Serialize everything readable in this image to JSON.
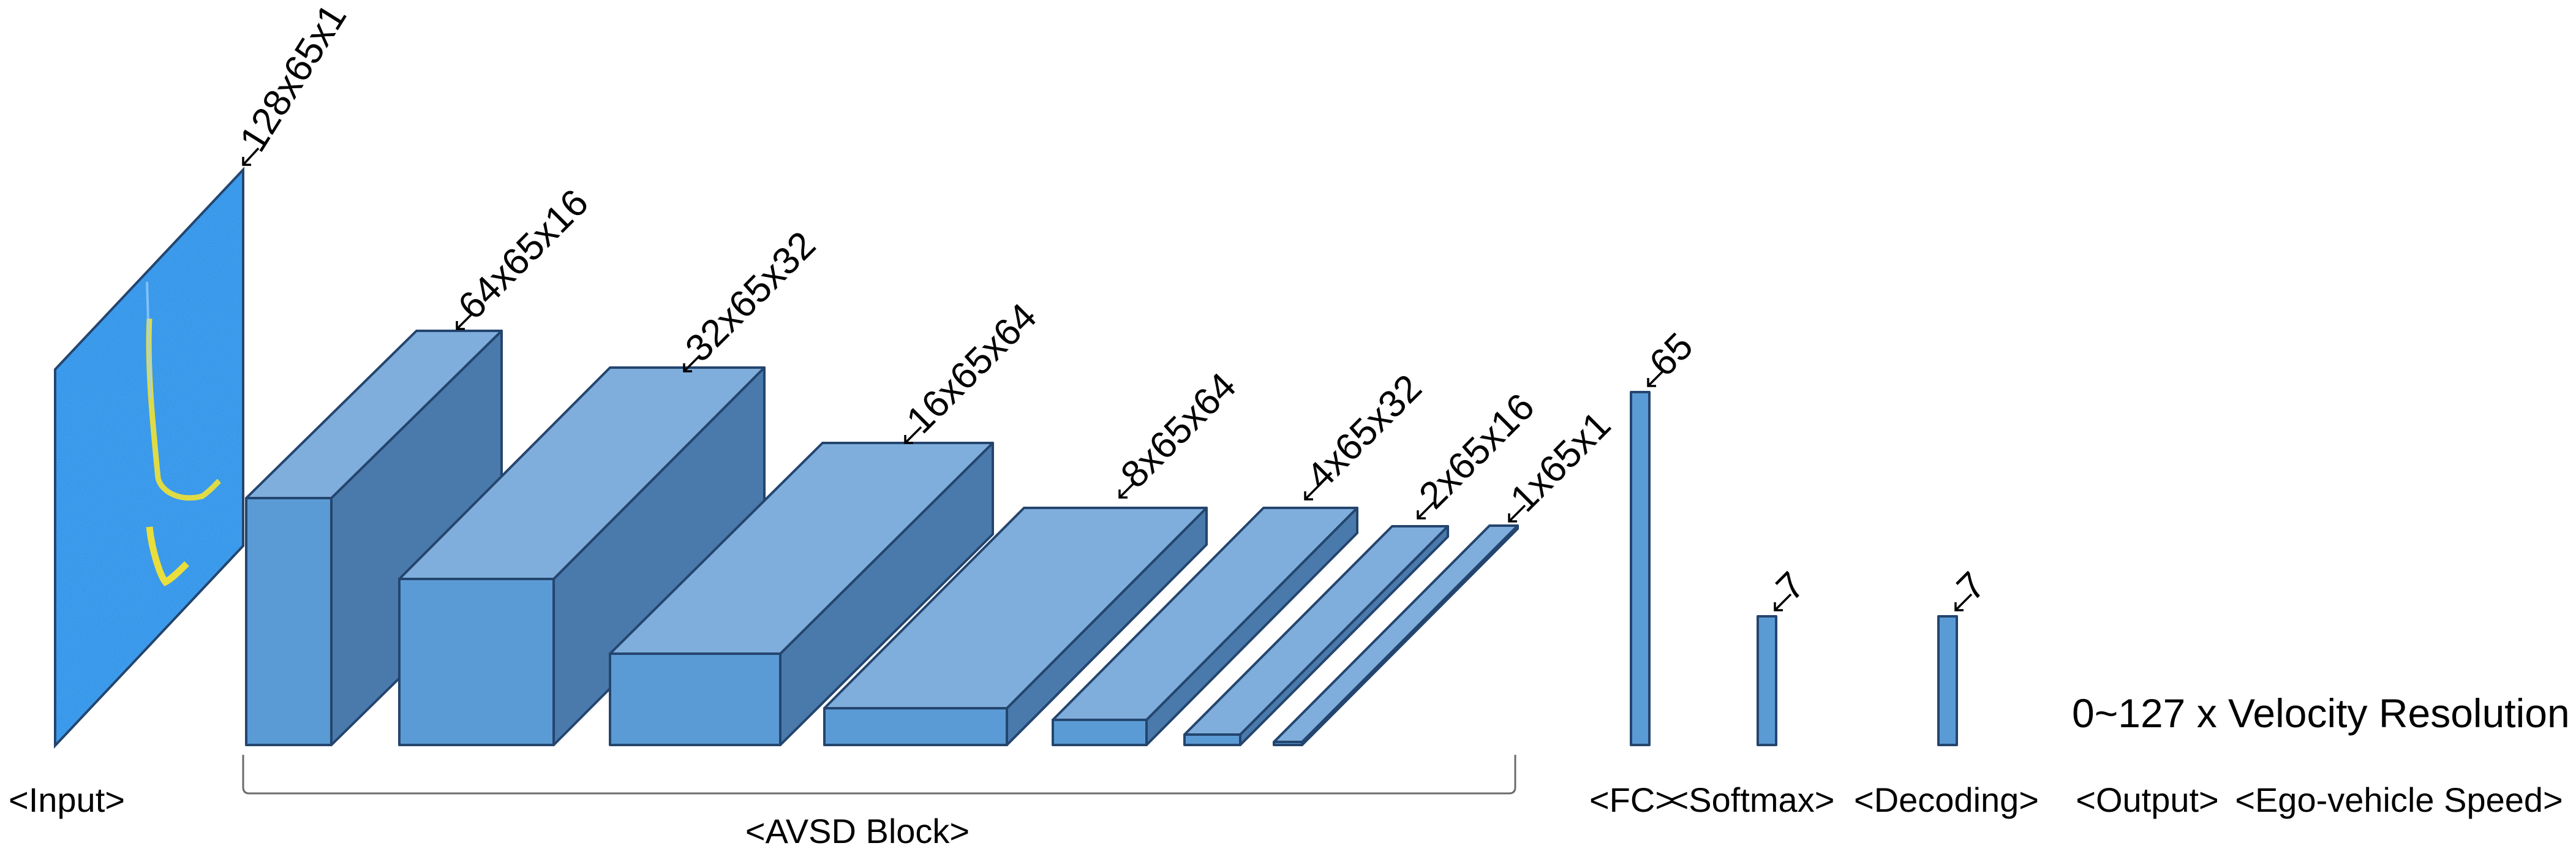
{
  "colors": {
    "front": "#5b9bd5",
    "top": "#7faedc",
    "side": "#4a7aab",
    "edge": "#24456e",
    "input_base": "#2f8fe6",
    "input_signal": "#f2e233"
  },
  "input": {
    "label": "<Input>",
    "dims": "128x65x1"
  },
  "blocks": [
    {
      "id": "b1",
      "dims": "64x65x16"
    },
    {
      "id": "b2",
      "dims": "32x65x32"
    },
    {
      "id": "b3",
      "dims": "16x65x64"
    },
    {
      "id": "b4",
      "dims": "8x65x64"
    },
    {
      "id": "b5",
      "dims": "4x65x32"
    },
    {
      "id": "b6",
      "dims": "2x65x16"
    },
    {
      "id": "b7",
      "dims": "1x65x1"
    }
  ],
  "avsd_label": "<AVSD Block>",
  "bars": [
    {
      "id": "fc",
      "dims": "65",
      "label": "<FC>"
    },
    {
      "id": "softmax",
      "dims": "7",
      "label": "<Softmax>"
    },
    {
      "id": "decoding",
      "dims": "7",
      "label": "<Decoding>"
    }
  ],
  "output": {
    "label": "<Output>",
    "value": "0~127 x Velocity Resolution"
  },
  "speed_label": "<Ego-vehicle Speed>"
}
